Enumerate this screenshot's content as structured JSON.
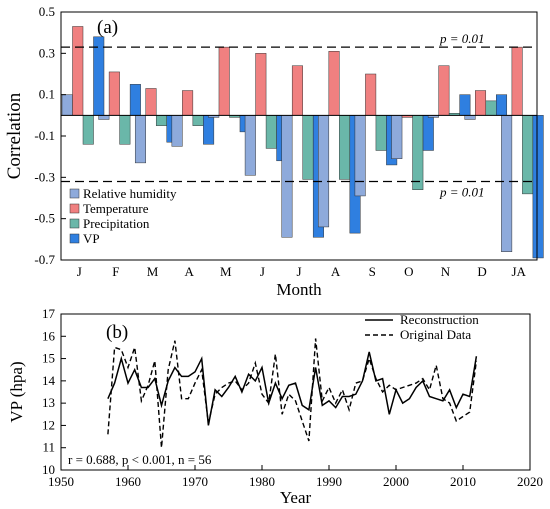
{
  "chart_data": [
    {
      "panel_label": "(a)",
      "type": "bar",
      "ylabel": "Correlation",
      "xlabel": "Month",
      "ylim": [
        -0.7,
        0.5
      ],
      "yticks": [
        -0.7,
        -0.5,
        -0.3,
        -0.1,
        0.1,
        0.3,
        0.5
      ],
      "ytick_labels": [
        "-0.7",
        "-0.5",
        "-0.3",
        "-0.1",
        "0.1",
        "0.3",
        "0.5"
      ],
      "categories": [
        "J",
        "F",
        "M",
        "A",
        "M",
        "J",
        "J",
        "A",
        "S",
        "O",
        "N",
        "D",
        "JA"
      ],
      "series": [
        {
          "name": "Relative humidity",
          "color": "#8eaadb",
          "values": [
            0.1,
            -0.02,
            -0.23,
            -0.15,
            -0.01,
            -0.29,
            -0.59,
            -0.54,
            -0.39,
            -0.21,
            -0.01,
            -0.02,
            -0.66
          ]
        },
        {
          "name": "Temperature",
          "color": "#f08080",
          "values": [
            0.43,
            0.21,
            0.13,
            0.12,
            0.33,
            0.3,
            0.24,
            0.31,
            0.2,
            -0.01,
            0.24,
            0.12,
            0.33
          ]
        },
        {
          "name": "Precipitation",
          "color": "#6ab7a9",
          "values": [
            -0.14,
            -0.14,
            -0.05,
            -0.05,
            -0.01,
            -0.16,
            -0.31,
            -0.31,
            -0.17,
            -0.36,
            0.01,
            0.07,
            -0.38
          ]
        },
        {
          "name": "VP",
          "color": "#2f7fe0",
          "values": [
            0.38,
            0.15,
            -0.13,
            -0.14,
            -0.08,
            -0.22,
            -0.59,
            -0.57,
            -0.24,
            -0.17,
            0.1,
            0.1,
            -0.69
          ]
        }
      ],
      "reference_lines": [
        {
          "value": 0.33,
          "label": "p = 0.01"
        },
        {
          "value": -0.32,
          "label": "p = 0.01"
        }
      ],
      "legend_position": "bottom-left"
    },
    {
      "panel_label": "(b)",
      "type": "line",
      "ylabel": "VP (hpa)",
      "xlabel": "Year",
      "xlim": [
        1950,
        2020
      ],
      "ylim": [
        10,
        17
      ],
      "xticks": [
        1950,
        1960,
        1970,
        1980,
        1990,
        2000,
        2010,
        2020
      ],
      "yticks": [
        10,
        11,
        12,
        13,
        14,
        15,
        16,
        17
      ],
      "annotation": "r = 0.688, p < 0.001, n = 56",
      "legend_position": "top-right",
      "x": [
        1957,
        1958,
        1959,
        1960,
        1961,
        1962,
        1963,
        1964,
        1965,
        1966,
        1967,
        1968,
        1969,
        1970,
        1971,
        1972,
        1973,
        1974,
        1975,
        1976,
        1977,
        1978,
        1979,
        1980,
        1981,
        1982,
        1983,
        1984,
        1985,
        1986,
        1987,
        1988,
        1989,
        1990,
        1991,
        1992,
        1993,
        1994,
        1995,
        1996,
        1997,
        1998,
        1999,
        2000,
        2001,
        2002,
        2003,
        2004,
        2005,
        2006,
        2007,
        2008,
        2009,
        2010,
        2011,
        2012
      ],
      "series": [
        {
          "name": "Reconstruction",
          "style": "solid",
          "values": [
            13.2,
            13.9,
            15.0,
            13.9,
            14.5,
            13.7,
            13.7,
            14.1,
            12.9,
            14.0,
            14.6,
            14.2,
            14.2,
            14.4,
            15.0,
            12.0,
            13.6,
            13.3,
            13.7,
            14.2,
            13.5,
            14.3,
            14.0,
            14.6,
            13.0,
            13.9,
            13.2,
            13.8,
            13.9,
            12.9,
            12.7,
            14.6,
            12.9,
            13.1,
            12.8,
            13.3,
            13.3,
            13.4,
            14.0,
            15.3,
            14.0,
            14.1,
            12.5,
            13.6,
            13.0,
            13.2,
            13.7,
            14.0,
            13.3,
            13.2,
            13.1,
            13.6,
            12.8,
            13.4,
            13.3,
            15.1
          ]
        },
        {
          "name": "Original Data",
          "style": "dashed",
          "values": [
            11.6,
            15.5,
            15.4,
            14.6,
            15.5,
            13.1,
            13.8,
            14.9,
            11.0,
            14.5,
            15.8,
            13.2,
            13.2,
            13.9,
            14.5,
            12.1,
            13.4,
            13.7,
            13.9,
            14.0,
            13.6,
            13.9,
            14.8,
            13.4,
            13.0,
            15.2,
            12.5,
            13.4,
            13.1,
            12.2,
            11.3,
            15.9,
            13.1,
            13.7,
            13.0,
            13.6,
            12.7,
            13.9,
            14.0,
            15.0,
            14.1,
            13.5,
            13.8,
            13.6,
            13.7,
            13.8,
            13.9,
            14.1,
            13.6,
            14.7,
            13.2,
            13.0,
            12.2,
            12.4,
            12.6,
            14.9
          ]
        }
      ]
    }
  ]
}
